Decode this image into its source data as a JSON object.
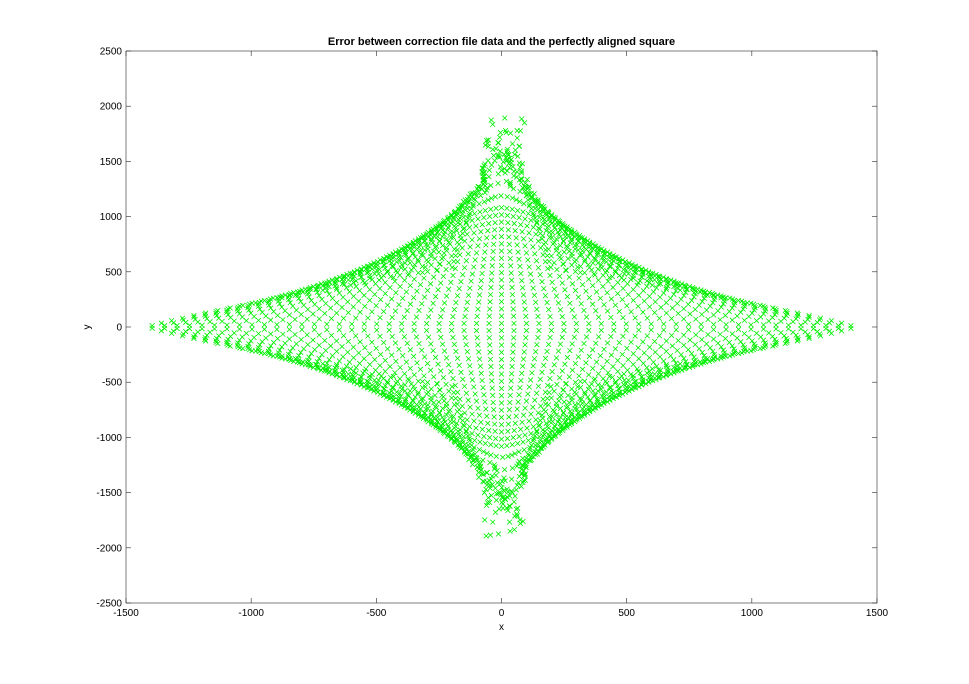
{
  "chart_data": {
    "type": "scatter",
    "title": "Error between correction file data and the perfectly aligned square",
    "xlabel": "x",
    "ylabel": "y",
    "xlim": [
      -1500,
      1500
    ],
    "ylim": [
      -2500,
      2500
    ],
    "x_ticks": [
      -1500,
      -1000,
      -500,
      0,
      500,
      1000,
      1500
    ],
    "y_ticks": [
      -2500,
      -2000,
      -1500,
      -1000,
      -500,
      0,
      500,
      1000,
      1500,
      2000,
      2500
    ],
    "x_tick_labels": [
      "-1500",
      "-1000",
      "-500",
      "0",
      "500",
      "1000",
      "1500"
    ],
    "y_tick_labels": [
      "-2500",
      "-2000",
      "-1500",
      "-1000",
      "-500",
      "0",
      "500",
      "1000",
      "1500",
      "2000",
      "2500"
    ],
    "grid": false,
    "legend": "none",
    "marker": "x",
    "marker_color": "#00ee00",
    "pattern": {
      "shape": "lens-shaped grid of x markers converging near x=0 at the top and bottom",
      "x_extent": [
        -1420,
        1400
      ],
      "y_extent": [
        -2230,
        2200
      ],
      "columns": 57,
      "rows": 48,
      "top_convergence": [
        10,
        1600
      ],
      "bottom_convergence": [
        10,
        -1500
      ]
    }
  }
}
